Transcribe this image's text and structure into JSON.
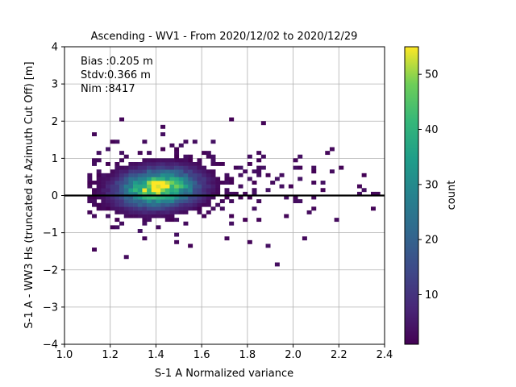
{
  "chart_data": {
    "type": "heatmap",
    "title": "Ascending - WV1 - From 2020/12/02 to 2020/12/29",
    "xlabel": "S-1 A Normalized variance",
    "ylabel": "S-1 A - WW3 Hs (truncated at Azimuth Cut Off) [m]",
    "xlim": [
      1.0,
      2.4
    ],
    "ylim": [
      -4,
      4
    ],
    "xticks": [
      "1.0",
      "1.2",
      "1.4",
      "1.6",
      "1.8",
      "2.0",
      "2.2",
      "2.4"
    ],
    "yticks": [
      "4",
      "3",
      "2",
      "1",
      "0",
      "−1",
      "−2",
      "−3",
      "−4"
    ],
    "grid": true,
    "colormap": "viridis",
    "colorbar": {
      "label": "count",
      "range": [
        1,
        55
      ],
      "ticks": [
        "50",
        "40",
        "30",
        "20",
        "10"
      ]
    },
    "stats": {
      "bias": "Bias :0.205 m",
      "stdv": "Stdv:0.366 m",
      "nim": "Nim :8417"
    },
    "zero_line": 0,
    "density_summary": {
      "peak_x": 1.4,
      "peak_y": 0.15,
      "peak_count": 55,
      "x_spread": [
        1.1,
        2.4
      ],
      "y_spread": [
        -2.0,
        2.4
      ]
    }
  }
}
